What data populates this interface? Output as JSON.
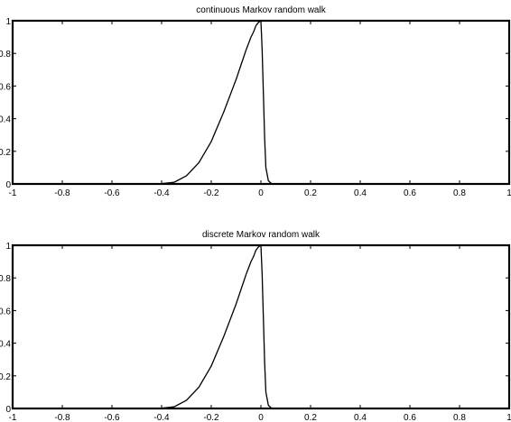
{
  "chart_data": [
    {
      "type": "line",
      "title": "continuous Markov random walk",
      "xlabel": "",
      "ylabel": "",
      "xlim": [
        -1,
        1
      ],
      "ylim": [
        0,
        1
      ],
      "xticks": [
        -1,
        -0.8,
        -0.6,
        -0.4,
        -0.2,
        0,
        0.2,
        0.4,
        0.6,
        0.8,
        1
      ],
      "xtick_labels": [
        "-1",
        "-0.8",
        "-0.6",
        "-0.4",
        "-0.2",
        "0",
        "0.2",
        "0.4",
        "0.6",
        "0.8",
        "1"
      ],
      "yticks": [
        0,
        0.2,
        0.4,
        0.6,
        0.8,
        1
      ],
      "ytick_labels": [
        "0",
        "0.2",
        "0.4",
        "0.6",
        "0.8",
        "1"
      ],
      "grid": false,
      "series": [
        {
          "x": [
            -1,
            -0.5,
            -0.4,
            -0.35,
            -0.3,
            -0.25,
            -0.2,
            -0.15,
            -0.1,
            -0.08,
            -0.06,
            -0.04,
            -0.03,
            -0.02,
            -0.01,
            0,
            0.005,
            0.01,
            0.015,
            0.02,
            0.03,
            0.04,
            0.05,
            1
          ],
          "y": [
            0,
            0,
            0.002,
            0.01,
            0.05,
            0.13,
            0.26,
            0.44,
            0.64,
            0.73,
            0.82,
            0.9,
            0.93,
            0.97,
            0.99,
            1,
            0.82,
            0.55,
            0.28,
            0.1,
            0.02,
            0.005,
            0,
            0
          ]
        }
      ]
    },
    {
      "type": "line",
      "title": "discrete Markov random walk",
      "xlabel": "",
      "ylabel": "",
      "xlim": [
        -1,
        1
      ],
      "ylim": [
        0,
        1
      ],
      "xticks": [
        -1,
        -0.8,
        -0.6,
        -0.4,
        -0.2,
        0,
        0.2,
        0.4,
        0.6,
        0.8,
        1
      ],
      "xtick_labels": [
        "-1",
        "-0.8",
        "-0.6",
        "-0.4",
        "-0.2",
        "0",
        "0.2",
        "0.4",
        "0.6",
        "0.8",
        "1"
      ],
      "yticks": [
        0,
        0.2,
        0.4,
        0.6,
        0.8,
        1
      ],
      "ytick_labels": [
        "0",
        "0.2",
        "0.4",
        "0.6",
        "0.8",
        "1"
      ],
      "grid": false,
      "series": [
        {
          "x": [
            -1,
            -0.5,
            -0.4,
            -0.35,
            -0.3,
            -0.25,
            -0.2,
            -0.15,
            -0.1,
            -0.08,
            -0.06,
            -0.04,
            -0.03,
            -0.02,
            -0.01,
            0,
            0.005,
            0.01,
            0.015,
            0.02,
            0.03,
            0.04,
            0.05,
            1
          ],
          "y": [
            0,
            0,
            0.002,
            0.01,
            0.05,
            0.13,
            0.26,
            0.44,
            0.64,
            0.73,
            0.82,
            0.9,
            0.93,
            0.97,
            0.99,
            1,
            0.82,
            0.55,
            0.28,
            0.1,
            0.02,
            0.005,
            0,
            0
          ]
        }
      ]
    }
  ]
}
